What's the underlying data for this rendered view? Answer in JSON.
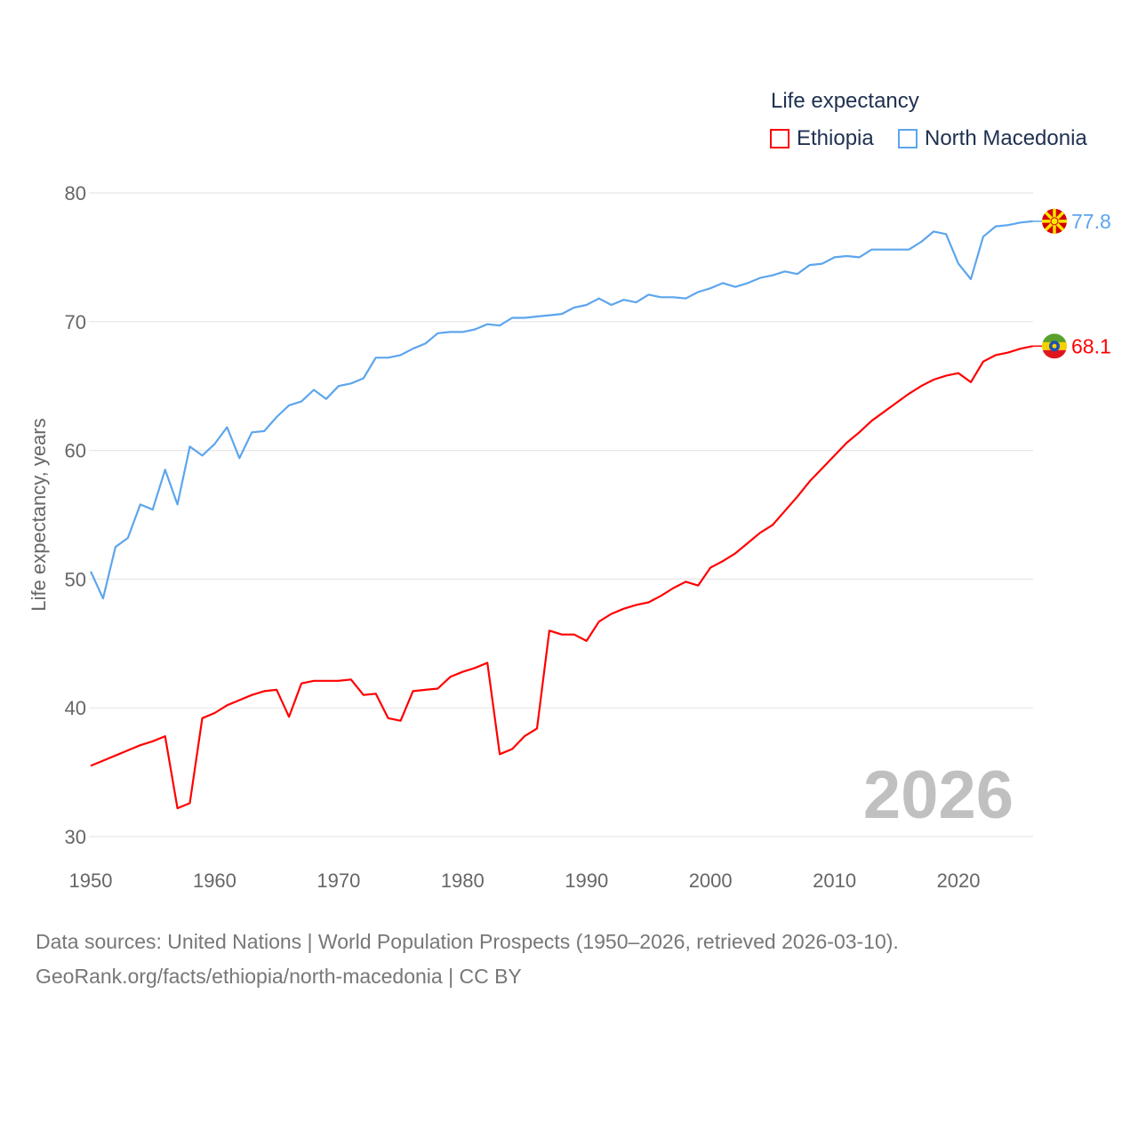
{
  "chart_data": {
    "type": "line",
    "title": "Life expectancy",
    "xlabel": "",
    "ylabel": "Life expectancy, years",
    "xlim": [
      1950,
      2026
    ],
    "ylim": [
      30,
      80
    ],
    "xticks": [
      1950,
      1960,
      1970,
      1980,
      1990,
      2000,
      2010,
      2020
    ],
    "yticks": [
      30,
      40,
      50,
      60,
      70,
      80
    ],
    "grid": true,
    "legend_placement": "top-right",
    "year_watermark": "2026",
    "x_start": 1950,
    "series": [
      {
        "name": "Ethiopia",
        "color": "#ff0000",
        "end_label": "68.1",
        "flag": "ethiopia-flag",
        "values": [
          35.5,
          35.9,
          36.3,
          36.7,
          37.1,
          37.4,
          37.8,
          32.2,
          32.6,
          39.2,
          39.6,
          40.2,
          40.6,
          41.0,
          41.3,
          41.4,
          39.3,
          41.9,
          42.1,
          42.1,
          42.1,
          42.2,
          41.0,
          41.1,
          39.2,
          39.0,
          41.3,
          41.4,
          41.5,
          42.4,
          42.8,
          43.1,
          43.5,
          36.4,
          36.8,
          37.8,
          38.4,
          46.0,
          45.7,
          45.7,
          45.2,
          46.7,
          47.3,
          47.7,
          48.0,
          48.2,
          48.7,
          49.3,
          49.8,
          49.5,
          50.9,
          51.4,
          52.0,
          52.8,
          53.6,
          54.2,
          55.3,
          56.4,
          57.6,
          58.6,
          59.6,
          60.6,
          61.4,
          62.3,
          63.0,
          63.7,
          64.4,
          65.0,
          65.5,
          65.8,
          66.0,
          65.3,
          66.9,
          67.4,
          67.6,
          67.9,
          68.1
        ]
      },
      {
        "name": "North Macedonia",
        "color": "#5da5ee",
        "end_label": "77.8",
        "flag": "north-macedonia-flag",
        "values": [
          50.6,
          48.5,
          52.5,
          53.2,
          55.8,
          55.4,
          58.5,
          55.8,
          60.3,
          59.6,
          60.5,
          61.8,
          59.4,
          61.4,
          61.5,
          62.6,
          63.5,
          63.8,
          64.7,
          64.0,
          65.0,
          65.2,
          65.6,
          67.2,
          67.2,
          67.4,
          67.9,
          68.3,
          69.1,
          69.2,
          69.2,
          69.4,
          69.8,
          69.7,
          70.3,
          70.3,
          70.4,
          70.5,
          70.6,
          71.1,
          71.3,
          71.8,
          71.3,
          71.7,
          71.5,
          72.1,
          71.9,
          71.9,
          71.8,
          72.3,
          72.6,
          73.0,
          72.7,
          73.0,
          73.4,
          73.6,
          73.9,
          73.7,
          74.4,
          74.5,
          75.0,
          75.1,
          75.0,
          75.6,
          75.6,
          75.6,
          75.6,
          76.2,
          77.0,
          76.8,
          74.5,
          73.3,
          76.6,
          77.4,
          77.5,
          77.7,
          77.8
        ]
      }
    ]
  },
  "footer": {
    "sources": "Data sources: United Nations | World Population Prospects (1950–2026, retrieved 2026-03-10).",
    "credit": "GeoRank.org/facts/ethiopia/north-macedonia | CC BY"
  }
}
